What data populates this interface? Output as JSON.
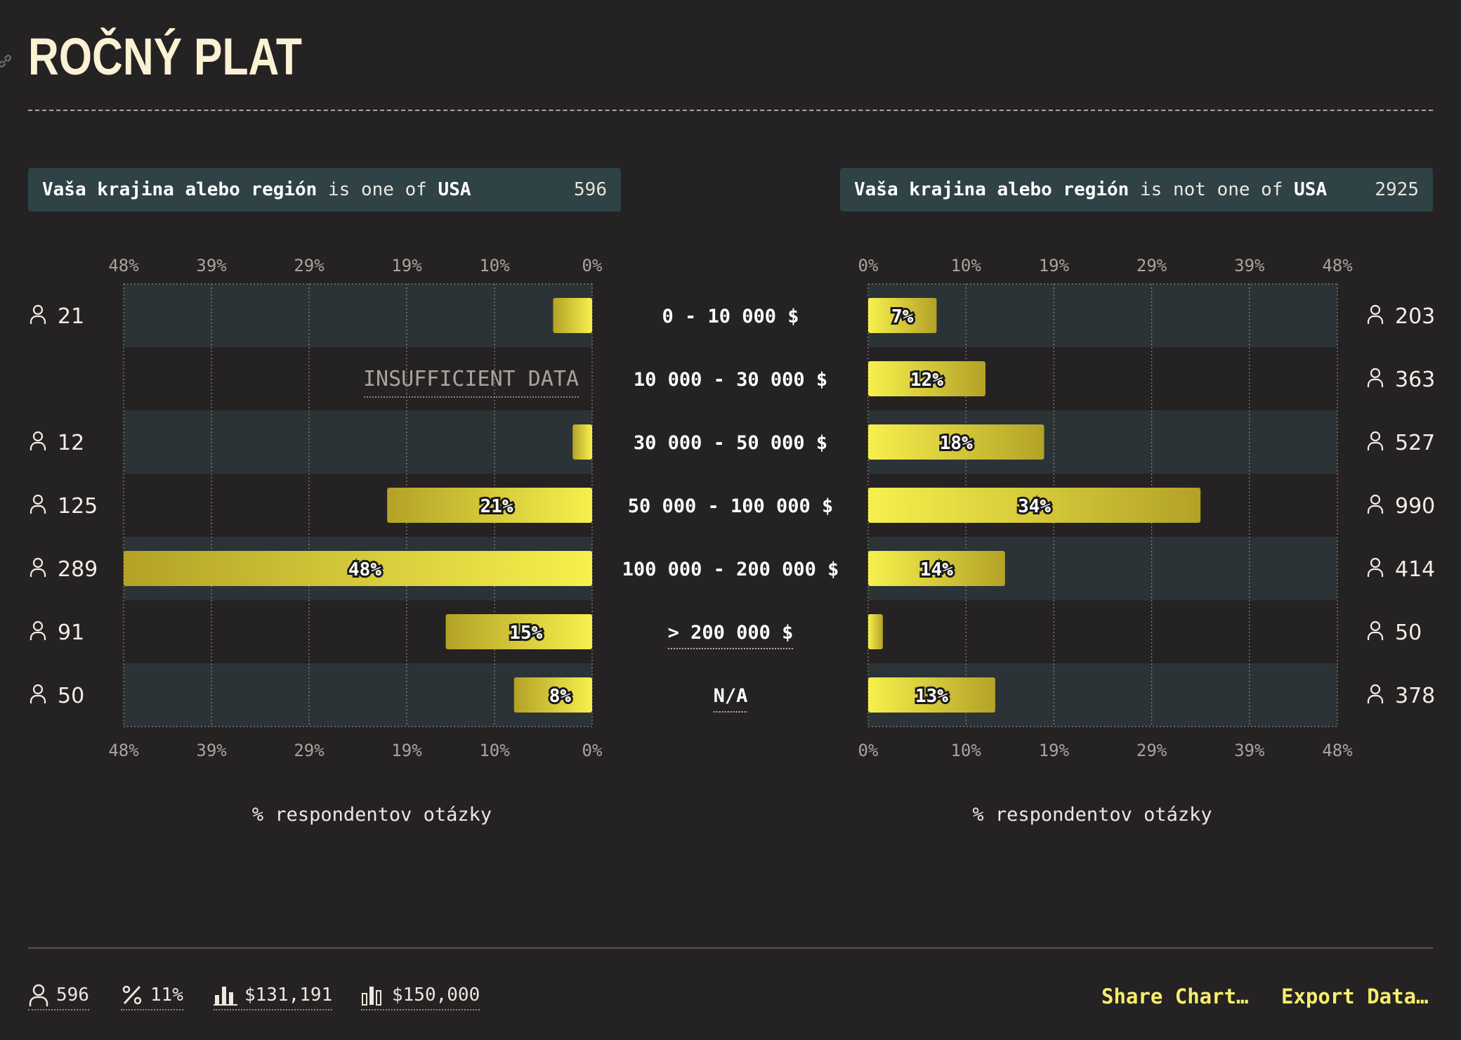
{
  "title": "ROČNÝ PLAT",
  "filters": [
    {
      "field": "Vaša krajina alebo región",
      "op": "is one of",
      "value": "USA",
      "count": "596"
    },
    {
      "field": "Vaša krajina alebo región",
      "op": "is not one of",
      "value": "USA",
      "count": "2925"
    }
  ],
  "chart_data": {
    "type": "bar",
    "orientation": "horizontal",
    "categories": [
      "0 - 10 000 $",
      "10 000 - 30 000 $",
      "30 000 - 50 000 $",
      "50 000 - 100 000 $",
      "100 000 - 200 000 $",
      "> 200 000 $",
      "N/A"
    ],
    "series": [
      {
        "panel": "left",
        "values": [
          4,
          null,
          2,
          21,
          48,
          15,
          8
        ],
        "labels": [
          "",
          "",
          "",
          "21%",
          "48%",
          "15%",
          "8%"
        ],
        "counts": [
          "21",
          "",
          "12",
          "125",
          "289",
          "91",
          "50"
        ],
        "na_text": "INSUFFICIENT DATA"
      },
      {
        "panel": "right",
        "values": [
          7,
          12,
          18,
          34,
          14,
          1.5,
          13
        ],
        "labels": [
          "7%",
          "12%",
          "18%",
          "34%",
          "14%",
          "",
          "13%"
        ],
        "counts": [
          "203",
          "363",
          "527",
          "990",
          "414",
          "50",
          "378"
        ]
      }
    ],
    "tick_labels": [
      "0%",
      "10%",
      "19%",
      "29%",
      "39%",
      "48%"
    ],
    "xlim": [
      0,
      48
    ],
    "xlabel": "% respondentov otázky",
    "grid": true,
    "colors": {
      "bar_start": "#f7f04d",
      "bar_end": "#b3a227",
      "band": "#2b3336"
    }
  },
  "footer": {
    "stats": [
      {
        "icon": "person-icon",
        "value": "596"
      },
      {
        "icon": "percent-icon",
        "value": "11%"
      },
      {
        "icon": "mean-icon",
        "value": "$131,191"
      },
      {
        "icon": "median-icon",
        "value": "$150,000"
      }
    ],
    "share_label": "Share Chart…",
    "export_label": "Export Data…"
  }
}
